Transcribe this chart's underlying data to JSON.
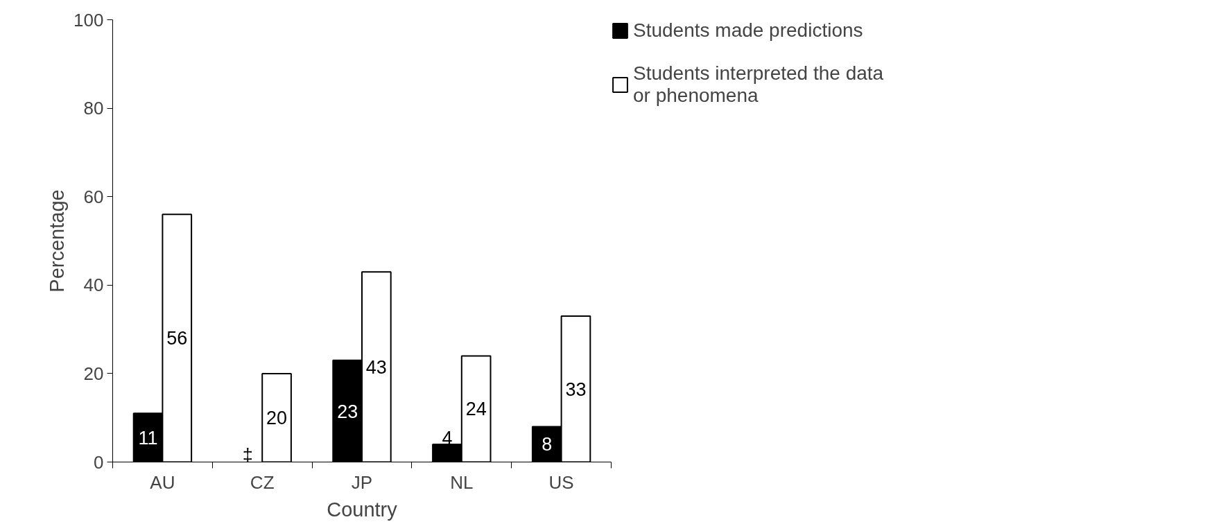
{
  "chart_data": {
    "type": "bar",
    "xlabel": "Country",
    "ylabel": "Percentage",
    "categories": [
      "AU",
      "CZ",
      "JP",
      "NL",
      "US"
    ],
    "series": [
      {
        "name": "Students made predictions",
        "color": "#000000",
        "values": [
          11,
          null,
          23,
          4,
          8
        ],
        "value_labels": [
          "11",
          "‡",
          "23",
          "4",
          "8"
        ]
      },
      {
        "name": "Students interpreted the data or phenomena",
        "color": "#ffffff",
        "values": [
          56,
          20,
          43,
          24,
          33
        ],
        "value_labels": [
          "56",
          "20",
          "43",
          "24",
          "33"
        ]
      }
    ],
    "ylim": [
      0,
      100
    ],
    "yticks": [
      0,
      20,
      40,
      60,
      80,
      100
    ],
    "legend": "right"
  }
}
